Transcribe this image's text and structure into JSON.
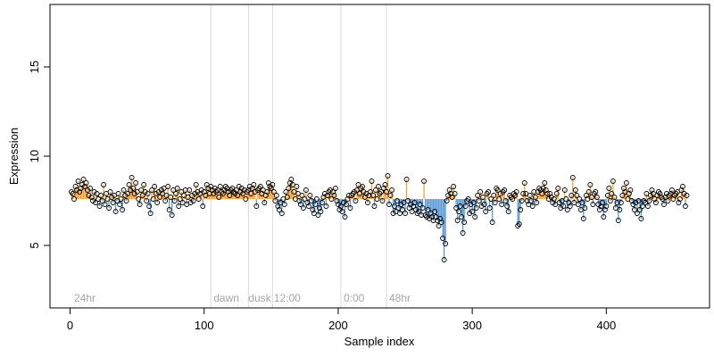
{
  "chart_data": {
    "type": "scatter",
    "title": "",
    "xlabel": "Sample index",
    "ylabel": "Expression",
    "xlim": [
      -15,
      477
    ],
    "ylim": [
      1.5,
      18.5
    ],
    "x_ticks": [
      0,
      100,
      200,
      300,
      400
    ],
    "y_ticks": [
      5,
      10,
      15
    ],
    "baseline": 7.6,
    "colors": {
      "above": "#f2a23a",
      "below": "#5b9bd5",
      "marker_stroke": "#000000",
      "separator": "#d9d9d9",
      "group_label": "#a6a6a6"
    },
    "group_separators": [
      105,
      133,
      151,
      202,
      236
    ],
    "group_labels": [
      {
        "x": 3,
        "label": "24hr"
      },
      {
        "x": 107,
        "label": "dawn"
      },
      {
        "x": 133,
        "label": "dusk"
      },
      {
        "x": 152,
        "label": "12:00"
      },
      {
        "x": 204,
        "label": "0:00"
      },
      {
        "x": 238,
        "label": "48hr"
      }
    ],
    "series": [
      {
        "x_start": 1,
        "values": [
          8.0,
          7.9,
          7.6,
          8.3,
          8.1,
          8.6,
          8.0,
          8.2,
          8.4,
          8.7,
          8.3,
          8.5,
          8.1,
          7.8,
          8.2,
          7.7,
          7.5,
          8.0,
          7.4,
          7.9,
          7.6,
          7.2,
          7.8,
          7.5,
          8.4,
          7.3,
          7.9,
          7.6,
          7.1,
          8.0,
          7.7,
          7.4,
          7.8,
          6.9,
          7.5,
          7.9,
          7.3,
          7.6,
          7.0,
          8.1,
          7.8,
          7.5,
          7.9,
          8.4,
          8.1,
          8.8,
          8.2,
          7.9,
          8.5,
          8.0,
          7.6,
          7.3,
          8.1,
          7.8,
          8.4,
          8.0,
          7.5,
          7.9,
          7.2,
          6.8,
          8.1,
          7.6,
          8.3,
          7.9,
          7.4,
          8.0,
          7.7,
          8.1,
          7.9,
          8.2,
          7.5,
          7.8,
          8.3,
          7.0,
          7.7,
          6.7,
          8.1,
          7.5,
          7.9,
          8.2,
          7.2,
          7.6,
          8.0,
          7.4,
          7.8,
          8.1,
          7.3,
          7.7,
          8.1,
          7.4,
          7.8,
          7.5,
          7.9,
          8.4,
          8.0,
          7.6,
          7.9,
          8.1,
          7.2,
          8.0,
          7.8,
          8.4,
          8.2,
          7.9,
          8.3,
          8.1,
          7.9,
          8.2,
          8.0,
          8.1,
          7.7,
          8.3,
          8.0,
          7.9,
          8.1,
          8.3,
          8.2,
          8.0,
          7.8,
          8.1,
          8.2,
          8.0,
          7.9,
          8.1,
          7.8,
          8.3,
          8.0,
          8.2,
          7.9,
          8.1,
          7.6,
          8.0,
          8.1,
          8.3,
          7.9,
          8.2,
          8.4,
          8.0,
          7.2,
          8.1,
          8.2,
          8.3,
          7.9,
          8.1,
          7.4,
          7.8,
          8.0,
          8.5,
          8.3,
          8.2,
          8.4,
          8.0,
          7.5,
          7.8,
          7.2,
          7.0,
          7.4,
          6.8,
          7.6,
          7.3,
          8.0,
          7.7,
          8.2,
          8.5,
          8.7,
          8.4,
          8.0,
          7.6,
          8.3,
          7.9,
          7.5,
          7.3,
          7.8,
          7.1,
          7.6,
          8.1,
          7.4,
          7.2,
          7.8,
          7.5,
          7.0,
          6.8,
          7.3,
          7.6,
          6.7,
          7.1,
          6.9,
          7.4,
          7.7,
          7.9,
          7.2,
          7.8,
          8.0,
          8.1,
          7.6,
          8.0,
          7.8,
          8.2,
          7.5,
          7.3,
          7.0,
          7.2,
          6.9,
          7.4,
          6.6,
          7.3,
          7.6,
          7.8,
          7.1,
          7.8,
          7.9,
          8.0,
          7.5,
          8.1,
          8.4,
          7.9,
          8.2,
          8.3,
          8.0,
          7.7,
          7.9,
          7.4,
          7.8,
          8.0,
          8.6,
          7.8,
          7.2,
          8.1,
          7.6,
          8.3,
          7.9,
          8.0,
          7.5,
          8.2,
          8.4,
          8.0,
          8.9,
          7.3,
          7.8,
          8.1,
          6.8,
          7.2,
          6.9,
          7.5,
          7.1,
          6.8,
          7.3,
          7.0,
          7.4,
          6.8,
          8.7,
          7.5,
          7.1,
          7.3,
          6.9,
          7.2,
          7.4,
          7.0,
          6.8,
          6.9,
          7.3,
          6.7,
          7.1,
          8.6,
          6.7,
          6.6,
          7.0,
          6.5,
          6.8,
          6.6,
          6.4,
          6.9,
          6.6,
          6.4,
          6.1,
          6.5,
          6.3,
          5.4,
          4.2,
          5.1,
          7.5,
          7.8,
          8.1,
          7.9,
          7.7,
          8.3,
          7.9,
          7.1,
          6.4,
          6.9,
          7.2,
          6.6,
          5.7,
          6.3,
          7.2,
          7.5,
          7.6,
          6.8,
          7.3,
          6.9,
          7.4,
          6.6,
          7.1,
          7.8,
          7.5,
          8.0,
          7.2,
          7.7,
          7.3,
          6.9,
          7.9,
          8.0,
          7.1,
          7.6,
          6.3,
          7.8,
          7.4,
          8.2,
          8.1,
          7.6,
          7.9,
          7.3,
          8.0,
          8.1,
          7.5,
          7.2,
          6.9,
          7.8,
          7.7,
          7.6,
          7.9,
          7.8,
          8.0,
          6.1,
          6.2,
          7.0,
          7.5,
          7.9,
          8.5,
          7.9,
          7.5,
          7.3,
          7.8,
          7.5,
          7.2,
          8.0,
          7.7,
          7.4,
          8.0,
          8.2,
          8.1,
          7.9,
          8.2,
          8.5,
          8.1,
          7.9,
          7.6,
          7.9,
          7.7,
          7.4,
          7.6,
          7.3,
          7.9,
          8.2,
          7.4,
          7.1,
          7.5,
          7.2,
          8.1,
          7.6,
          7.0,
          7.4,
          7.2,
          7.8,
          8.8,
          7.4,
          8.1,
          7.8,
          7.3,
          7.6,
          7.0,
          7.4,
          6.5,
          7.1,
          7.8,
          7.6,
          8.0,
          8.4,
          7.7,
          7.3,
          7.9,
          8.0,
          7.7,
          7.3,
          7.0,
          7.2,
          7.4,
          6.6,
          7.0,
          7.2,
          7.8,
          8.2,
          7.5,
          7.9,
          8.6,
          7.7,
          7.1,
          7.4,
          6.4,
          7.0,
          7.4,
          7.8,
          8.2,
          8.0,
          8.5,
          7.6,
          7.9,
          8.1,
          7.5,
          7.3,
          7.0,
          7.4,
          6.8,
          7.5,
          7.0,
          6.5,
          7.2,
          7.5,
          7.4,
          7.9,
          7.2,
          7.5,
          7.8,
          8.1,
          7.9,
          7.6,
          7.4,
          7.8,
          8.0,
          7.9,
          7.7,
          7.6,
          7.3,
          7.7,
          7.9,
          7.5,
          7.8,
          7.9,
          8.1,
          7.6,
          7.8,
          7.9,
          8.0,
          7.4,
          7.6,
          8.1,
          8.3,
          7.9,
          7.2,
          7.8
        ]
      }
    ]
  }
}
